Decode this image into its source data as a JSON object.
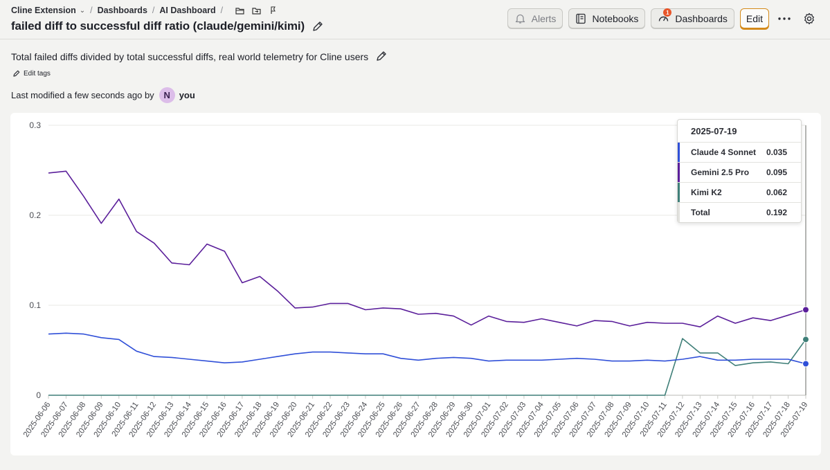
{
  "breadcrumbs": {
    "project": "Cline Extension",
    "dashboards": "Dashboards",
    "dashboard": "AI Dashboard"
  },
  "title": "failed diff to successful diff ratio (claude/gemini/kimi)",
  "toolbar": {
    "alerts": "Alerts",
    "notebooks": "Notebooks",
    "dashboards": "Dashboards",
    "dashboards_badge": "1",
    "edit": "Edit"
  },
  "description": "Total failed diffs divided by total successful diffs, real world telemetry for Cline users",
  "edit_tags": "Edit tags",
  "modified": {
    "text": "Last modified a few seconds ago by",
    "avatar_initial": "N",
    "user": "you"
  },
  "chart_data": {
    "type": "line",
    "title": "",
    "xlabel": "",
    "ylabel": "",
    "ylim": [
      0,
      0.3
    ],
    "yticks": [
      "0",
      "0.1",
      "0.2",
      "0.3"
    ],
    "grid": true,
    "x": [
      "2025-06-06",
      "2025-06-07",
      "2025-06-08",
      "2025-06-09",
      "2025-06-10",
      "2025-06-11",
      "2025-06-12",
      "2025-06-13",
      "2025-06-14",
      "2025-06-15",
      "2025-06-16",
      "2025-06-17",
      "2025-06-18",
      "2025-06-19",
      "2025-06-20",
      "2025-06-21",
      "2025-06-22",
      "2025-06-23",
      "2025-06-24",
      "2025-06-25",
      "2025-06-26",
      "2025-06-27",
      "2025-06-28",
      "2025-06-29",
      "2025-06-30",
      "2025-07-01",
      "2025-07-02",
      "2025-07-03",
      "2025-07-04",
      "2025-07-05",
      "2025-07-06",
      "2025-07-07",
      "2025-07-08",
      "2025-07-09",
      "2025-07-10",
      "2025-07-11",
      "2025-07-12",
      "2025-07-13",
      "2025-07-14",
      "2025-07-15",
      "2025-07-16",
      "2025-07-17",
      "2025-07-18",
      "2025-07-19"
    ],
    "series": [
      {
        "name": "Claude 4 Sonnet",
        "color": "#2f4fd8",
        "values": [
          0.068,
          0.069,
          0.068,
          0.064,
          0.062,
          0.049,
          0.043,
          0.042,
          0.04,
          0.038,
          0.036,
          0.037,
          0.04,
          0.043,
          0.046,
          0.048,
          0.048,
          0.047,
          0.046,
          0.046,
          0.041,
          0.039,
          0.041,
          0.042,
          0.041,
          0.038,
          0.039,
          0.039,
          0.039,
          0.04,
          0.041,
          0.04,
          0.038,
          0.038,
          0.039,
          0.038,
          0.04,
          0.043,
          0.039,
          0.039,
          0.04,
          0.04,
          0.04,
          0.035
        ]
      },
      {
        "name": "Gemini 2.5 Pro",
        "color": "#5a1e9a",
        "values": [
          0.247,
          0.249,
          0.221,
          0.191,
          0.218,
          0.182,
          0.169,
          0.147,
          0.145,
          0.168,
          0.16,
          0.125,
          0.132,
          0.116,
          0.097,
          0.098,
          0.102,
          0.102,
          0.095,
          0.097,
          0.096,
          0.09,
          0.091,
          0.088,
          0.078,
          0.088,
          0.082,
          0.081,
          0.085,
          0.081,
          0.077,
          0.083,
          0.082,
          0.077,
          0.081,
          0.08,
          0.08,
          0.076,
          0.088,
          0.08,
          0.086,
          0.083,
          0.089,
          0.095
        ]
      },
      {
        "name": "Kimi K2",
        "color": "#3f7f78",
        "values": [
          0,
          0,
          0,
          0,
          0,
          0,
          0,
          0,
          0,
          0,
          0,
          0,
          0,
          0,
          0,
          0,
          0,
          0,
          0,
          0,
          0,
          0,
          0,
          0,
          0,
          0,
          0,
          0,
          0,
          0,
          0,
          0,
          0,
          0,
          0,
          0,
          0.063,
          0.047,
          0.047,
          0.033,
          0.036,
          0.037,
          0.035,
          0.062
        ]
      }
    ],
    "tooltip": {
      "date": "2025-07-19",
      "rows": [
        {
          "name": "Claude 4 Sonnet",
          "value": "0.035",
          "color": "#2f4fd8"
        },
        {
          "name": "Gemini 2.5 Pro",
          "value": "0.095",
          "color": "#5a1e9a"
        },
        {
          "name": "Kimi K2",
          "value": "0.062",
          "color": "#3f7f78"
        },
        {
          "name": "Total",
          "value": "0.192",
          "color": "#e2e2de"
        }
      ]
    }
  }
}
